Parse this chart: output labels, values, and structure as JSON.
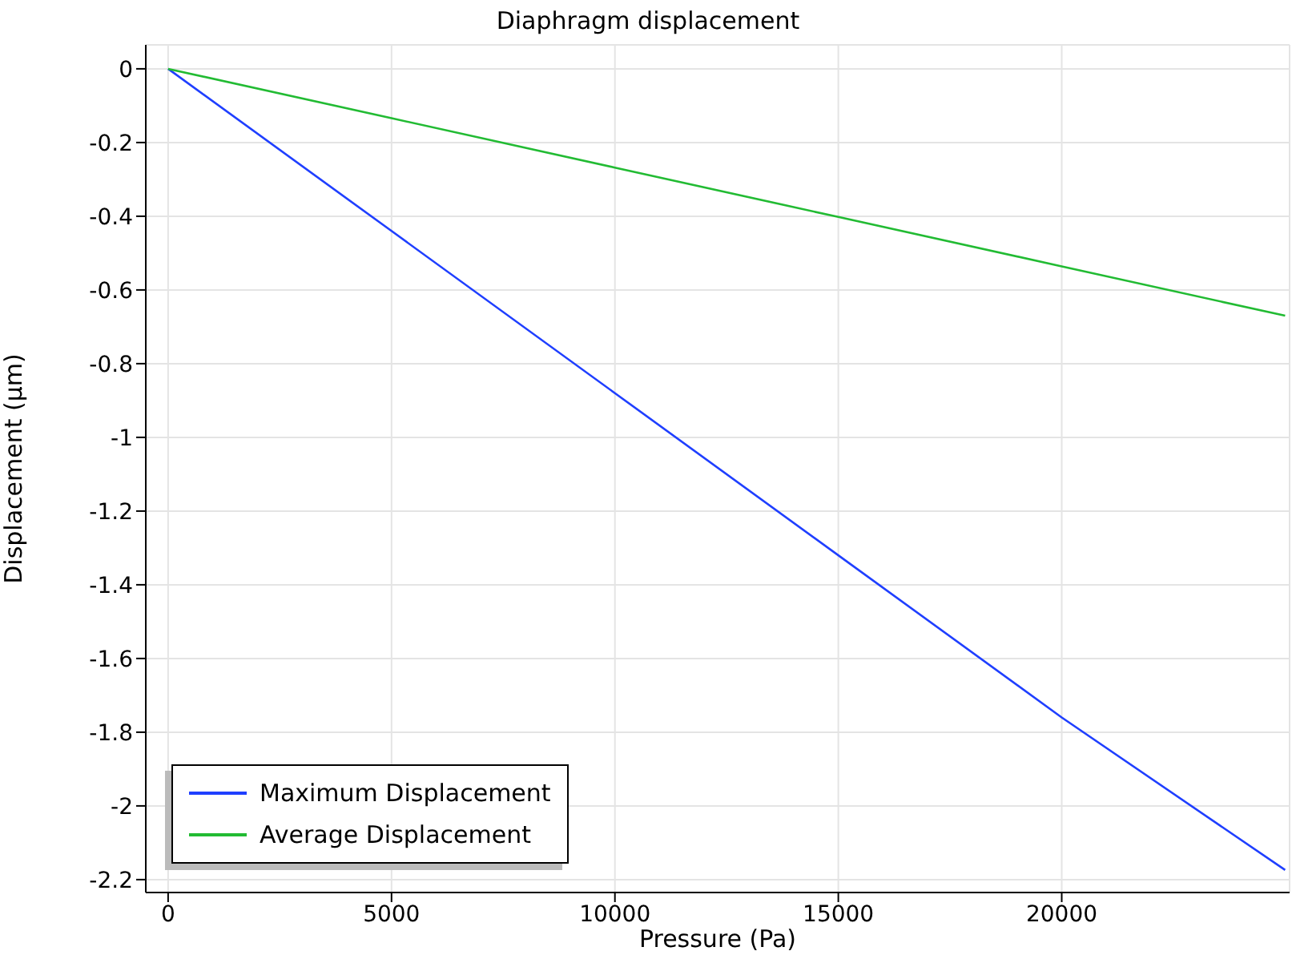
{
  "chart_data": {
    "type": "line",
    "title": "Diaphragm displacement",
    "xlabel": "Pressure (Pa)",
    "ylabel": "Displacement (µm)",
    "x": [
      0,
      5000,
      10000,
      15000,
      20000,
      25000
    ],
    "series": [
      {
        "name": "Maximum Displacement",
        "color": "#1f3fff",
        "values": [
          0,
          -0.44,
          -0.88,
          -1.32,
          -1.76,
          -2.174
        ]
      },
      {
        "name": "Average Displacement",
        "color": "#22bb33",
        "values": [
          0,
          -0.134,
          -0.268,
          -0.402,
          -0.536,
          -0.67
        ]
      }
    ],
    "xlim": [
      -500,
      25100
    ],
    "xticks": [
      0,
      5000,
      10000,
      15000,
      20000
    ],
    "ylim": [
      -2.235,
      0.065
    ],
    "yticks": [
      0,
      -0.2,
      -0.4,
      -0.6,
      -0.8,
      -1,
      -1.2,
      -1.4,
      -1.6,
      -1.8,
      -2,
      -2.2
    ],
    "grid": true,
    "legend": "bottom left",
    "marker": "none",
    "line_style": "solid"
  }
}
